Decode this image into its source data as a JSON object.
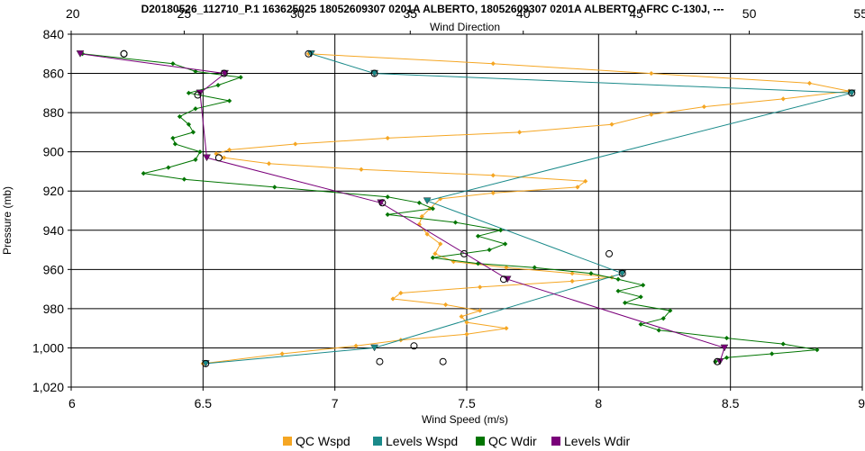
{
  "chart_data": {
    "type": "line",
    "title": "D20180526_112710_P.1 163625025 18052609307 0201A ALBERTO, 18052609307 0201A ALBERTO AFRC C-130J, ---",
    "xlabel": "Wind Speed (m/s)",
    "x2label": "Wind Direction",
    "ylabel": "Pressure (mb)",
    "xlim": [
      6,
      9
    ],
    "x2lim": [
      20,
      55
    ],
    "ylim": [
      1020,
      840
    ],
    "y_inverted": true,
    "grid": true,
    "legend_position": "bottom",
    "x_ticks": [
      "6",
      "6.5",
      "7",
      "7.5",
      "8",
      "8.5",
      "9"
    ],
    "x2_ticks": [
      "20",
      "25",
      "30",
      "35",
      "40",
      "45",
      "50",
      "55"
    ],
    "y_ticks": [
      "840",
      "860",
      "880",
      "900",
      "920",
      "940",
      "960",
      "980",
      "1,000",
      "1,020"
    ],
    "x_tick_values": [
      6,
      6.5,
      7,
      7.5,
      8,
      8.5,
      9
    ],
    "x2_tick_values": [
      20,
      25,
      30,
      35,
      40,
      45,
      50,
      55
    ],
    "y_tick_values": [
      840,
      860,
      880,
      900,
      920,
      940,
      960,
      980,
      1000,
      1020
    ],
    "series": [
      {
        "name": "QC Wspd",
        "axis": "bottom",
        "color": "#f5a623",
        "marker": "diamond",
        "points": [
          [
            6.9,
            850
          ],
          [
            7.6,
            855
          ],
          [
            8.2,
            860
          ],
          [
            8.8,
            865
          ],
          [
            8.95,
            869
          ],
          [
            8.7,
            873
          ],
          [
            8.4,
            877
          ],
          [
            8.2,
            881
          ],
          [
            8.05,
            886
          ],
          [
            7.7,
            890
          ],
          [
            7.2,
            893
          ],
          [
            6.85,
            896
          ],
          [
            6.6,
            899
          ],
          [
            6.55,
            901
          ],
          [
            6.58,
            903
          ],
          [
            6.75,
            906
          ],
          [
            7.1,
            909
          ],
          [
            7.6,
            912
          ],
          [
            7.95,
            915
          ],
          [
            7.92,
            918
          ],
          [
            7.6,
            921
          ],
          [
            7.4,
            924
          ],
          [
            7.36,
            929
          ],
          [
            7.33,
            933
          ],
          [
            7.32,
            937
          ],
          [
            7.35,
            942
          ],
          [
            7.4,
            947
          ],
          [
            7.38,
            952
          ],
          [
            7.45,
            956
          ],
          [
            7.65,
            959
          ],
          [
            7.9,
            962
          ],
          [
            8.05,
            964
          ],
          [
            7.9,
            966
          ],
          [
            7.55,
            969
          ],
          [
            7.25,
            972
          ],
          [
            7.22,
            975
          ],
          [
            7.42,
            978
          ],
          [
            7.55,
            981
          ],
          [
            7.48,
            984
          ],
          [
            7.5,
            987
          ],
          [
            7.65,
            990
          ],
          [
            7.5,
            993
          ],
          [
            7.25,
            996
          ],
          [
            7.08,
            999
          ],
          [
            6.8,
            1003
          ],
          [
            6.5,
            1008
          ]
        ]
      },
      {
        "name": "Levels Wspd",
        "axis": "bottom",
        "color": "#1a8a8a",
        "marker": "triangle",
        "points": [
          [
            6.91,
            850
          ],
          [
            7.15,
            860
          ],
          [
            8.96,
            870
          ],
          [
            7.35,
            925
          ],
          [
            8.09,
            962
          ],
          [
            7.15,
            1000
          ],
          [
            6.51,
            1008
          ]
        ]
      },
      {
        "name": "QC Wdir",
        "axis": "top",
        "color": "#007500",
        "marker": "diamond",
        "points": [
          [
            20.5,
            850
          ],
          [
            24.5,
            855
          ],
          [
            25.5,
            859
          ],
          [
            27.5,
            862
          ],
          [
            26.5,
            866
          ],
          [
            25.2,
            870
          ],
          [
            27,
            874
          ],
          [
            25.5,
            878
          ],
          [
            24.8,
            882
          ],
          [
            25.2,
            886
          ],
          [
            25.4,
            890
          ],
          [
            24.5,
            893
          ],
          [
            24.6,
            896
          ],
          [
            25.7,
            900
          ],
          [
            25.5,
            904
          ],
          [
            24.3,
            908
          ],
          [
            23.2,
            911
          ],
          [
            25,
            914
          ],
          [
            29,
            918
          ],
          [
            34,
            923
          ],
          [
            35.4,
            926
          ],
          [
            36,
            929
          ],
          [
            34,
            932
          ],
          [
            37,
            936
          ],
          [
            39,
            940
          ],
          [
            38,
            943
          ],
          [
            39.2,
            947
          ],
          [
            38.5,
            950
          ],
          [
            36,
            954
          ],
          [
            38,
            957
          ],
          [
            40.5,
            959
          ],
          [
            43,
            962
          ],
          [
            44.2,
            965
          ],
          [
            45.3,
            968
          ],
          [
            44.2,
            971
          ],
          [
            45.2,
            974
          ],
          [
            44.5,
            977
          ],
          [
            46.5,
            981
          ],
          [
            46.2,
            985
          ],
          [
            45.2,
            988
          ],
          [
            46,
            991
          ],
          [
            49,
            995
          ],
          [
            51.5,
            998
          ],
          [
            53,
            1001
          ],
          [
            51,
            1003
          ],
          [
            49,
            1005
          ],
          [
            48.5,
            1007
          ]
        ]
      },
      {
        "name": "Levels Wdir",
        "axis": "top",
        "color": "#7a007a",
        "marker": "triangle",
        "points": [
          [
            20.4,
            850
          ],
          [
            26.8,
            860
          ],
          [
            25.7,
            870
          ],
          [
            26,
            903
          ],
          [
            33.7,
            926
          ],
          [
            39.3,
            965
          ],
          [
            48.9,
            1000
          ],
          [
            48.7,
            1007
          ]
        ]
      }
    ],
    "circle_markers": [
      [
        6.2,
        850
      ],
      [
        6.2,
        850
      ],
      [
        6.58,
        860
      ],
      [
        6.48,
        871
      ],
      [
        6.56,
        903
      ],
      [
        6.9,
        850
      ],
      [
        7.15,
        860
      ],
      [
        8.96,
        870
      ],
      [
        7.18,
        926
      ],
      [
        7.49,
        952
      ],
      [
        7.3,
        999
      ],
      [
        7.17,
        1007
      ],
      [
        7.41,
        1007
      ],
      [
        8.04,
        952
      ],
      [
        8.09,
        962
      ],
      [
        7.64,
        965
      ],
      [
        8.45,
        1007
      ],
      [
        6.51,
        1008
      ]
    ]
  },
  "legend": [
    {
      "label": "QC Wspd",
      "color": "#f5a623"
    },
    {
      "label": "Levels Wspd",
      "color": "#1a8a8a"
    },
    {
      "label": "QC Wdir",
      "color": "#007500"
    },
    {
      "label": "Levels Wdir",
      "color": "#7a007a"
    }
  ]
}
